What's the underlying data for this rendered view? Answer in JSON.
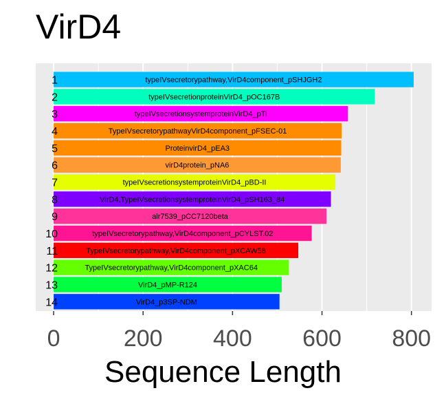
{
  "chart_data": {
    "type": "bar",
    "orientation": "horizontal",
    "title": "VirD4",
    "xlabel": "Sequence Length",
    "ylabel": "",
    "xlim": [
      -40,
      845
    ],
    "xticks": [
      0,
      200,
      400,
      600,
      800
    ],
    "grid": true,
    "legend": "none",
    "panel_background": "#ebebeb",
    "categories": [
      "1",
      "2",
      "3",
      "4",
      "5",
      "6",
      "7",
      "8",
      "9",
      "10",
      "11",
      "12",
      "13",
      "14"
    ],
    "bar_labels": [
      "typeIVsecretorypathway,VirD4component_pSHJGH2",
      "typeIVsecretionproteinVirD4_pOC167B",
      "typeIVsecretionsystemproteinVirD4_pTi",
      "TypeIVsecretorypathwayVirD4component_pFSEC-01",
      "ProteinvirD4_pEA3",
      "virD4protein_pNA6",
      "typeIVsecretionsystemproteinVirD4_pBD-II",
      "VirD4,TypeIVsecretionsystemproteinVirD4_pSH163_84",
      "alr7539_pCC7120beta",
      "typeIVsecretorypathway,VirD4component_pCYLST.02",
      "TypeIVsecretorypathway,VirD4component_pXCAW58",
      "TypeIVsecretorypathway,VirD4component_pXAC64",
      "VirD4_pMP-R124",
      "VirD4_p3SP-NDM"
    ],
    "values": [
      805,
      718,
      658,
      644,
      643,
      642,
      630,
      620,
      610,
      577,
      547,
      526,
      510,
      505
    ],
    "colors": [
      "#00bfff",
      "#00ffbf",
      "#ff00ff",
      "#ff8c00",
      "#ff8c00",
      "#ff9933",
      "#e6ff00",
      "#7f00ff",
      "#ff3399",
      "#ff1493",
      "#ff0000",
      "#66ff00",
      "#00ff40",
      "#0040ff"
    ]
  }
}
